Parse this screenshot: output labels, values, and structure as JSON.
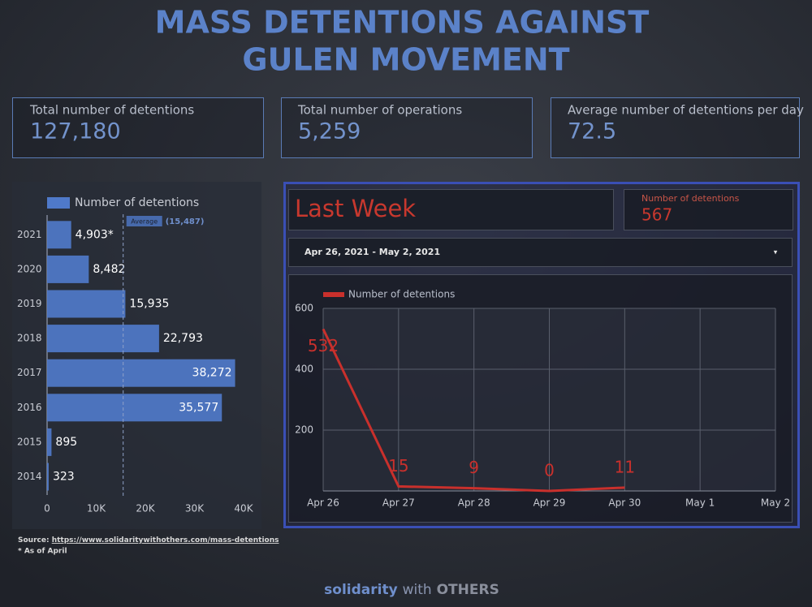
{
  "title_lines": [
    "MASS DETENTIONS AGAINST",
    "GULEN MOVEMENT"
  ],
  "scorecards": [
    {
      "label": "Total number of detentions",
      "value": "127,180"
    },
    {
      "label": "Total number of operations",
      "value": "5,259"
    },
    {
      "label": "Average number of detentions per day",
      "value": "72.5"
    }
  ],
  "last_week": {
    "title": "Last Week",
    "metric_label": "Number of detentions",
    "metric_value": 567,
    "date_range": "Apr 26, 2021 - May 2, 2021"
  },
  "chart_data": [
    {
      "type": "bar",
      "orientation": "horizontal",
      "categories": [
        "2021",
        "2020",
        "2019",
        "2018",
        "2017",
        "2016",
        "2015",
        "2014"
      ],
      "series": [
        {
          "name": "Number of detentions",
          "color": "#4f79c9",
          "values": [
            4903,
            8482,
            15935,
            22793,
            38272,
            35577,
            895,
            323
          ],
          "value_labels": [
            "4,903*",
            "8,482",
            "15,935",
            "22,793",
            "38,272",
            "35,577",
            "895",
            "323"
          ]
        }
      ],
      "average": {
        "label": "Average",
        "value": 15487,
        "value_label": "(15,487)"
      },
      "xlim": [
        0,
        40000
      ],
      "xticks": [
        0,
        {
          "value": 10000,
          "label": "10K"
        },
        {
          "value": 20000,
          "label": "20K"
        },
        {
          "value": 30000,
          "label": "30K"
        },
        {
          "value": 40000,
          "label": "40K"
        }
      ]
    },
    {
      "type": "line",
      "categories": [
        "Apr 26",
        "Apr 27",
        "Apr 28",
        "Apr 29",
        "Apr 30",
        "May 1",
        "May 2"
      ],
      "series": [
        {
          "name": "Number of detentions",
          "color": "#c9302c",
          "values": [
            532,
            15,
            9,
            0,
            11,
            null,
            null
          ]
        }
      ],
      "ylim": [
        0,
        600
      ],
      "yticks": [
        200,
        400,
        600
      ],
      "grid": true
    }
  ],
  "source": {
    "prefix": "Source:",
    "url": "https://www.solidaritywithothers.com/mass-detentions",
    "note": "* As of April"
  },
  "footer": [
    "solidarity",
    "with",
    "OTHERS"
  ]
}
